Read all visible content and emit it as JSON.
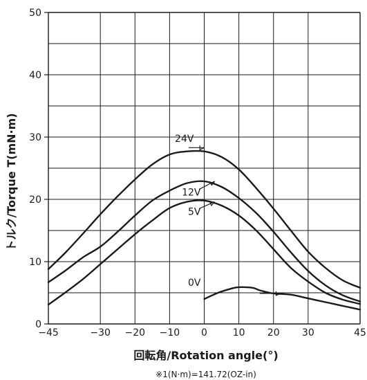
{
  "chart_data": {
    "type": "line",
    "title": "",
    "xlabel": "回転角/Rotation angle(°)",
    "ylabel": "トルク/Torque T(mN·m)",
    "footnote": "※1(N·m)=141.72(OZ-in)",
    "xlim": [
      -45,
      45
    ],
    "ylim": [
      0,
      50
    ],
    "x_ticks": [
      -45,
      -30,
      -20,
      -10,
      0,
      10,
      20,
      30,
      45
    ],
    "x_tick_labels": [
      "−45",
      "−30",
      "−20",
      "−10",
      "0",
      "10",
      "20",
      "30",
      "45"
    ],
    "y_ticks": [
      0,
      10,
      20,
      30,
      40,
      50
    ],
    "y_tick_labels": [
      "0",
      "10",
      "20",
      "30",
      "40",
      "50"
    ],
    "grid": true,
    "series": [
      {
        "name": "24V",
        "x": [
          -45,
          -40,
          -35,
          -30,
          -25,
          -20,
          -15,
          -10,
          -5,
          0,
          5,
          10,
          15,
          20,
          25,
          30,
          35,
          40,
          45
        ],
        "y": [
          8.8,
          11.5,
          14.5,
          17.6,
          20.5,
          23.2,
          25.6,
          27.2,
          27.7,
          27.7,
          26.8,
          24.8,
          21.8,
          18.5,
          15.0,
          11.6,
          9.0,
          7.0,
          5.8
        ]
      },
      {
        "name": "12V",
        "x": [
          -45,
          -40,
          -35,
          -30,
          -25,
          -20,
          -15,
          -10,
          -5,
          0,
          5,
          10,
          15,
          20,
          25,
          30,
          35,
          40,
          45
        ],
        "y": [
          6.7,
          8.6,
          10.7,
          12.4,
          14.8,
          17.4,
          19.8,
          21.4,
          22.6,
          22.9,
          22.0,
          20.2,
          17.8,
          14.8,
          11.5,
          8.5,
          6.2,
          4.6,
          3.6
        ]
      },
      {
        "name": "5V",
        "x": [
          -45,
          -40,
          -35,
          -30,
          -25,
          -20,
          -15,
          -10,
          -5,
          0,
          5,
          10,
          15,
          20,
          25,
          30,
          35,
          40,
          45
        ],
        "y": [
          3.1,
          5.1,
          7.2,
          9.6,
          12.0,
          14.4,
          16.6,
          18.6,
          19.6,
          19.8,
          19.0,
          17.4,
          15.0,
          12.0,
          9.0,
          6.8,
          5.0,
          3.9,
          3.2
        ]
      },
      {
        "name": "0V",
        "x": [
          0,
          4,
          8,
          10,
          14,
          16,
          20,
          25,
          30,
          35,
          40,
          45
        ],
        "y": [
          4.0,
          5.0,
          5.7,
          5.9,
          5.8,
          5.4,
          4.9,
          4.7,
          4.1,
          3.5,
          2.9,
          2.3
        ]
      }
    ]
  },
  "colors": {
    "line": "#1a1a1a",
    "grid": "#1a1a1a"
  }
}
